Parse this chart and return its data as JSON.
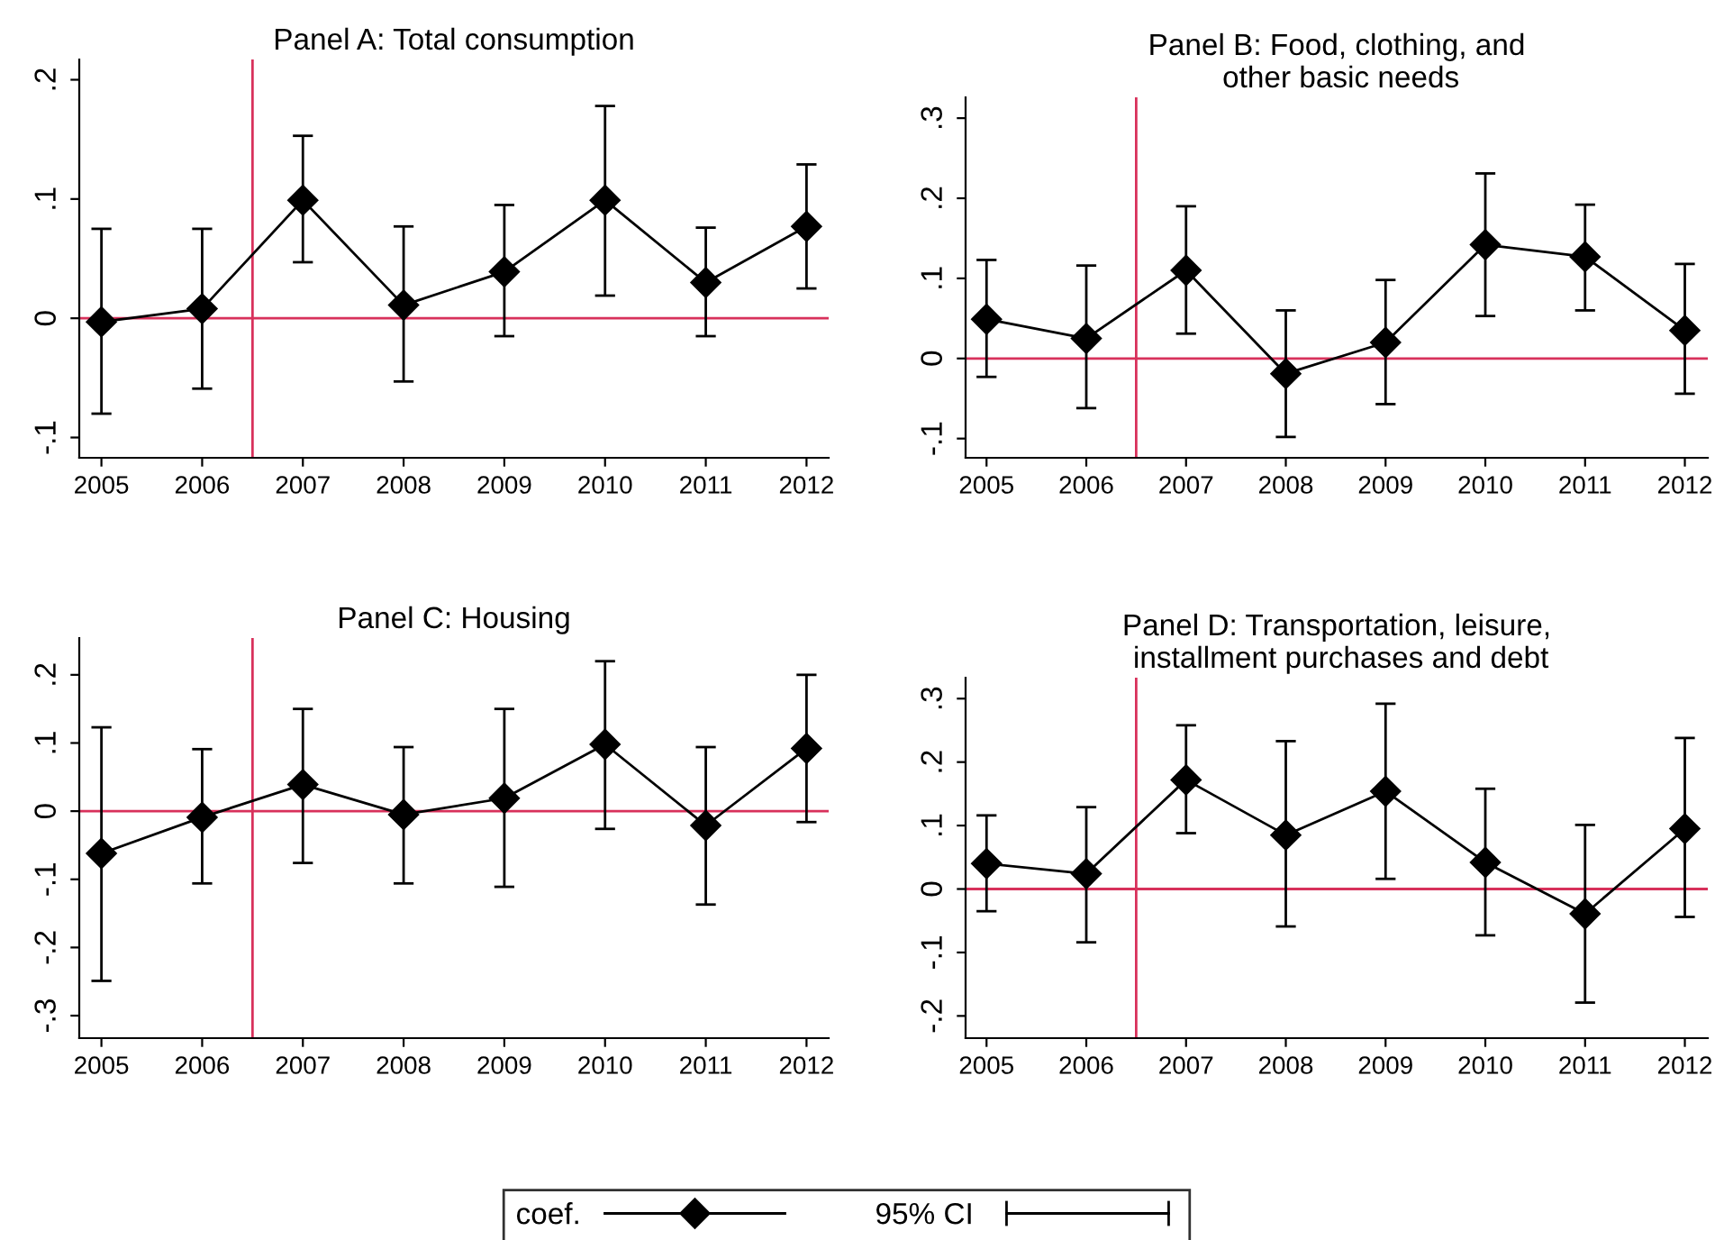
{
  "chart_data": [
    {
      "type": "line",
      "title": "Panel A: Total consumption",
      "x": [
        2005,
        2006,
        2007,
        2008,
        2009,
        2010,
        2011,
        2012
      ],
      "xlim": [
        2004.78,
        2012.22
      ],
      "xticks": [
        2005,
        2006,
        2007,
        2008,
        2009,
        2010,
        2011,
        2012
      ],
      "ylim": [
        -0.117,
        0.217
      ],
      "yticks": [
        {
          "value": -0.1,
          "label": "-.1"
        },
        0,
        {
          "value": 0.1,
          "label": ".1"
        },
        {
          "value": 0.2,
          "label": ".2"
        }
      ],
      "marker": "diamond",
      "grid": false,
      "legend": false,
      "series": [
        {
          "color": "#000000",
          "values": [
            -0.003,
            0.008,
            0.099,
            0.011,
            0.039,
            0.099,
            0.03,
            0.077
          ],
          "errors": [
            [
              -0.08,
              0.075
            ],
            [
              -0.059,
              0.075
            ],
            [
              0.047,
              0.153
            ],
            [
              -0.053,
              0.077
            ],
            [
              -0.015,
              0.095
            ],
            [
              0.019,
              0.178
            ],
            [
              -0.015,
              0.076
            ],
            [
              0.025,
              0.129
            ]
          ]
        }
      ],
      "ref_lines": [
        {
          "axis": "x",
          "value": 2006.5,
          "color": "#d8315b"
        },
        {
          "axis": "y",
          "value": 0,
          "color": "#d8315b"
        }
      ]
    },
    {
      "type": "line",
      "title": "Panel B: Food, clothing, and\n other basic needs",
      "x": [
        2005,
        2006,
        2007,
        2008,
        2009,
        2010,
        2011,
        2012
      ],
      "xlim": [
        2004.79,
        2012.23
      ],
      "xticks": [
        2005,
        2006,
        2007,
        2008,
        2009,
        2010,
        2011,
        2012
      ],
      "ylim": [
        -0.124,
        0.326
      ],
      "yticks": [
        {
          "value": -0.1,
          "label": "-.1"
        },
        0,
        {
          "value": 0.1,
          "label": ".1"
        },
        {
          "value": 0.2,
          "label": ".2"
        },
        {
          "value": 0.3,
          "label": ".3"
        }
      ],
      "marker": "diamond",
      "grid": false,
      "legend": false,
      "series": [
        {
          "color": "#000000",
          "values": [
            0.049,
            0.025,
            0.11,
            -0.019,
            0.02,
            0.142,
            0.127,
            0.035
          ],
          "errors": [
            [
              -0.023,
              0.123
            ],
            [
              -0.062,
              0.116
            ],
            [
              0.031,
              0.19
            ],
            [
              -0.098,
              0.06
            ],
            [
              -0.057,
              0.098
            ],
            [
              0.053,
              0.231
            ],
            [
              0.06,
              0.192
            ],
            [
              -0.044,
              0.118
            ]
          ]
        }
      ],
      "ref_lines": [
        {
          "axis": "x",
          "value": 2006.5,
          "color": "#d8315b"
        },
        {
          "axis": "y",
          "value": 0,
          "color": "#d8315b"
        }
      ]
    },
    {
      "type": "line",
      "title": "Panel C: Housing",
      "x": [
        2005,
        2006,
        2007,
        2008,
        2009,
        2010,
        2011,
        2012
      ],
      "xlim": [
        2004.78,
        2012.22
      ],
      "xticks": [
        2005,
        2006,
        2007,
        2008,
        2009,
        2010,
        2011,
        2012
      ],
      "ylim": [
        -0.333,
        0.254
      ],
      "yticks": [
        {
          "value": -0.3,
          "label": "-.3"
        },
        {
          "value": -0.2,
          "label": "-.2"
        },
        {
          "value": -0.1,
          "label": "-.1"
        },
        0,
        {
          "value": 0.1,
          "label": ".1"
        },
        {
          "value": 0.2,
          "label": ".2"
        }
      ],
      "marker": "diamond",
      "grid": false,
      "legend": false,
      "series": [
        {
          "color": "#000000",
          "values": [
            -0.062,
            -0.009,
            0.039,
            -0.005,
            0.019,
            0.098,
            -0.021,
            0.092
          ],
          "errors": [
            [
              -0.249,
              0.123
            ],
            [
              -0.106,
              0.091
            ],
            [
              -0.076,
              0.15
            ],
            [
              -0.106,
              0.094
            ],
            [
              -0.111,
              0.15
            ],
            [
              -0.026,
              0.22
            ],
            [
              -0.137,
              0.094
            ],
            [
              -0.016,
              0.2
            ]
          ]
        }
      ],
      "ref_lines": [
        {
          "axis": "x",
          "value": 2006.5,
          "color": "#d8315b"
        },
        {
          "axis": "y",
          "value": 0,
          "color": "#d8315b"
        }
      ]
    },
    {
      "type": "line",
      "title": "Panel D: Transportation, leisure,\n installment purchases and debt",
      "x": [
        2005,
        2006,
        2007,
        2008,
        2009,
        2010,
        2011,
        2012
      ],
      "xlim": [
        2004.79,
        2012.23
      ],
      "xticks": [
        2005,
        2006,
        2007,
        2008,
        2009,
        2010,
        2011,
        2012
      ],
      "ylim": [
        -0.235,
        0.333
      ],
      "yticks": [
        {
          "value": -0.2,
          "label": "-.2"
        },
        {
          "value": -0.1,
          "label": "-.1"
        },
        0,
        {
          "value": 0.1,
          "label": ".1"
        },
        {
          "value": 0.2,
          "label": ".2"
        },
        {
          "value": 0.3,
          "label": ".3"
        }
      ],
      "marker": "diamond",
      "grid": false,
      "legend": "bottom",
      "series": [
        {
          "name": "coef.",
          "color": "#000000",
          "values": [
            0.04,
            0.024,
            0.172,
            0.085,
            0.154,
            0.042,
            -0.039,
            0.095
          ],
          "errors": [
            [
              -0.035,
              0.116
            ],
            [
              -0.084,
              0.129
            ],
            [
              0.088,
              0.258
            ],
            [
              -0.059,
              0.233
            ],
            [
              0.016,
              0.292
            ],
            [
              -0.073,
              0.158
            ],
            [
              -0.179,
              0.101
            ],
            [
              -0.044,
              0.238
            ]
          ]
        }
      ],
      "annotations": [
        "95% CI"
      ],
      "ref_lines": [
        {
          "axis": "x",
          "value": 2006.5,
          "color": "#d8315b"
        },
        {
          "axis": "y",
          "value": 0,
          "color": "#d8315b"
        }
      ]
    }
  ]
}
